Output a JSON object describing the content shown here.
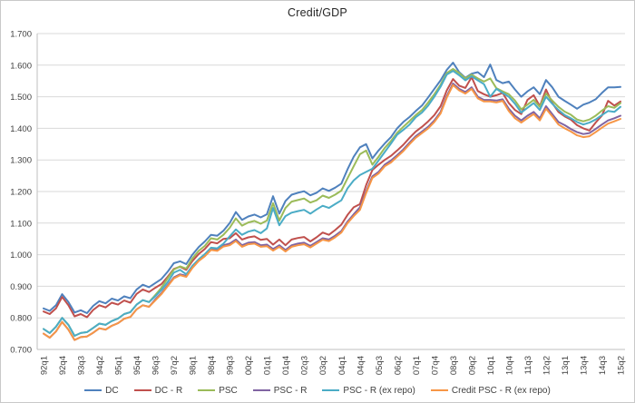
{
  "title": "Credit/GDP",
  "chart_data": {
    "type": "line",
    "title": "Credit/GDP",
    "xlabel": "",
    "ylabel": "",
    "grid": "horizontal",
    "legend_position": "bottom",
    "ylim": [
      0.7,
      1.7
    ],
    "y_ticks": [
      "0.700",
      "0.800",
      "0.900",
      "1.000",
      "1.100",
      "1.200",
      "1.300",
      "1.400",
      "1.500",
      "1.600",
      "1.700"
    ],
    "x_unit": "quarter",
    "x_label_step": 3,
    "x_tick_labels": [
      "92q1",
      "92q4",
      "93q3",
      "94q2",
      "95q1",
      "95q4",
      "96q3",
      "97q2",
      "98q1",
      "98q4",
      "99q3",
      "00q2",
      "01q1",
      "01q4",
      "02q3",
      "03q2",
      "04q1",
      "04q4",
      "05q3",
      "06q2",
      "07q1",
      "07q4",
      "08q3",
      "09q2",
      "10q1",
      "10q4",
      "11q3",
      "12q2",
      "13q1",
      "13q4",
      "14q3",
      "15q2"
    ],
    "series": [
      {
        "name": "DC",
        "color": "#4F81BD",
        "values": [
          0.83,
          0.822,
          0.84,
          0.875,
          0.85,
          0.817,
          0.824,
          0.815,
          0.838,
          0.853,
          0.846,
          0.861,
          0.855,
          0.868,
          0.862,
          0.89,
          0.905,
          0.897,
          0.91,
          0.923,
          0.946,
          0.973,
          0.979,
          0.97,
          1.0,
          1.024,
          1.042,
          1.063,
          1.06,
          1.076,
          1.1,
          1.135,
          1.11,
          1.121,
          1.127,
          1.118,
          1.128,
          1.185,
          1.13,
          1.17,
          1.19,
          1.196,
          1.201,
          1.188,
          1.196,
          1.21,
          1.202,
          1.212,
          1.225,
          1.27,
          1.31,
          1.34,
          1.35,
          1.305,
          1.33,
          1.352,
          1.372,
          1.4,
          1.42,
          1.436,
          1.455,
          1.472,
          1.498,
          1.525,
          1.552,
          1.585,
          1.608,
          1.578,
          1.56,
          1.573,
          1.578,
          1.562,
          1.602,
          1.553,
          1.543,
          1.548,
          1.523,
          1.5,
          1.517,
          1.53,
          1.508,
          1.553,
          1.53,
          1.5,
          1.487,
          1.475,
          1.462,
          1.475,
          1.482,
          1.492,
          1.512,
          1.53,
          1.53,
          1.531
        ]
      },
      {
        "name": "DC - R",
        "color": "#C0504D",
        "values": [
          0.82,
          0.812,
          0.83,
          0.866,
          0.84,
          0.805,
          0.812,
          0.802,
          0.825,
          0.84,
          0.833,
          0.848,
          0.842,
          0.855,
          0.848,
          0.876,
          0.89,
          0.882,
          0.895,
          0.907,
          0.93,
          0.955,
          0.962,
          0.952,
          0.98,
          1.002,
          1.018,
          1.04,
          1.036,
          1.05,
          1.052,
          1.068,
          1.048,
          1.055,
          1.058,
          1.047,
          1.05,
          1.032,
          1.048,
          1.03,
          1.048,
          1.053,
          1.056,
          1.042,
          1.055,
          1.07,
          1.063,
          1.078,
          1.095,
          1.126,
          1.15,
          1.16,
          1.22,
          1.268,
          1.285,
          1.3,
          1.313,
          1.33,
          1.348,
          1.37,
          1.39,
          1.405,
          1.422,
          1.442,
          1.47,
          1.52,
          1.556,
          1.535,
          1.528,
          1.562,
          1.518,
          1.508,
          1.5,
          1.505,
          1.512,
          1.48,
          1.458,
          1.445,
          1.49,
          1.505,
          1.47,
          1.523,
          1.48,
          1.452,
          1.438,
          1.428,
          1.41,
          1.4,
          1.393,
          1.418,
          1.44,
          1.487,
          1.472,
          1.485
        ]
      },
      {
        "name": "PSC",
        "color": "#9BBB59",
        "values": [
          0.765,
          0.752,
          0.772,
          0.8,
          0.778,
          0.743,
          0.752,
          0.755,
          0.768,
          0.782,
          0.778,
          0.79,
          0.798,
          0.812,
          0.818,
          0.842,
          0.856,
          0.85,
          0.872,
          0.895,
          0.925,
          0.953,
          0.963,
          0.956,
          0.988,
          1.012,
          1.028,
          1.052,
          1.048,
          1.063,
          1.085,
          1.115,
          1.092,
          1.102,
          1.107,
          1.098,
          1.108,
          1.163,
          1.108,
          1.148,
          1.168,
          1.173,
          1.178,
          1.165,
          1.172,
          1.187,
          1.18,
          1.19,
          1.203,
          1.242,
          1.28,
          1.318,
          1.33,
          1.285,
          1.31,
          1.338,
          1.36,
          1.386,
          1.405,
          1.423,
          1.442,
          1.458,
          1.482,
          1.508,
          1.538,
          1.575,
          1.588,
          1.575,
          1.558,
          1.57,
          1.558,
          1.548,
          1.558,
          1.527,
          1.517,
          1.508,
          1.488,
          1.46,
          1.475,
          1.49,
          1.468,
          1.51,
          1.488,
          1.468,
          1.453,
          1.443,
          1.428,
          1.422,
          1.428,
          1.44,
          1.456,
          1.47,
          1.465,
          1.48
        ]
      },
      {
        "name": "PSC - R",
        "color": "#8064A2",
        "values": [
          0.75,
          0.737,
          0.757,
          0.787,
          0.763,
          0.73,
          0.739,
          0.741,
          0.753,
          0.767,
          0.763,
          0.775,
          0.783,
          0.797,
          0.803,
          0.827,
          0.84,
          0.835,
          0.858,
          0.878,
          0.903,
          0.928,
          0.938,
          0.933,
          0.962,
          0.983,
          0.998,
          1.018,
          1.016,
          1.03,
          1.035,
          1.048,
          1.03,
          1.038,
          1.04,
          1.03,
          1.032,
          1.018,
          1.03,
          1.015,
          1.03,
          1.035,
          1.038,
          1.028,
          1.04,
          1.052,
          1.048,
          1.06,
          1.075,
          1.105,
          1.128,
          1.15,
          1.2,
          1.248,
          1.262,
          1.285,
          1.298,
          1.315,
          1.333,
          1.355,
          1.375,
          1.39,
          1.405,
          1.425,
          1.452,
          1.502,
          1.542,
          1.525,
          1.515,
          1.53,
          1.5,
          1.49,
          1.49,
          1.488,
          1.492,
          1.462,
          1.44,
          1.425,
          1.44,
          1.452,
          1.432,
          1.47,
          1.445,
          1.42,
          1.41,
          1.398,
          1.388,
          1.382,
          1.385,
          1.398,
          1.412,
          1.425,
          1.432,
          1.44
        ]
      },
      {
        "name": "PSC - R (ex repo)",
        "color": "#4BACC6",
        "values": [
          0.765,
          0.752,
          0.772,
          0.8,
          0.778,
          0.743,
          0.752,
          0.755,
          0.768,
          0.782,
          0.778,
          0.79,
          0.798,
          0.812,
          0.818,
          0.842,
          0.856,
          0.85,
          0.868,
          0.888,
          0.913,
          0.943,
          0.952,
          0.938,
          0.965,
          0.985,
          1.002,
          1.022,
          1.02,
          1.035,
          1.058,
          1.08,
          1.063,
          1.073,
          1.078,
          1.068,
          1.083,
          1.148,
          1.093,
          1.122,
          1.133,
          1.138,
          1.142,
          1.13,
          1.143,
          1.155,
          1.148,
          1.16,
          1.172,
          1.21,
          1.235,
          1.252,
          1.262,
          1.272,
          1.298,
          1.325,
          1.352,
          1.38,
          1.395,
          1.412,
          1.435,
          1.45,
          1.472,
          1.5,
          1.532,
          1.57,
          1.582,
          1.568,
          1.552,
          1.565,
          1.552,
          1.54,
          1.5,
          1.525,
          1.512,
          1.5,
          1.478,
          1.45,
          1.465,
          1.48,
          1.458,
          1.5,
          1.478,
          1.458,
          1.442,
          1.432,
          1.42,
          1.412,
          1.418,
          1.428,
          1.442,
          1.455,
          1.452,
          1.468
        ]
      },
      {
        "name": "Credit PSC - R (ex repo)",
        "color": "#F79646",
        "values": [
          0.75,
          0.737,
          0.757,
          0.787,
          0.763,
          0.73,
          0.739,
          0.741,
          0.753,
          0.767,
          0.763,
          0.775,
          0.783,
          0.797,
          0.803,
          0.827,
          0.84,
          0.835,
          0.855,
          0.875,
          0.9,
          0.925,
          0.935,
          0.93,
          0.958,
          0.98,
          0.995,
          1.015,
          1.012,
          1.026,
          1.03,
          1.043,
          1.025,
          1.033,
          1.035,
          1.025,
          1.027,
          1.013,
          1.025,
          1.01,
          1.025,
          1.03,
          1.033,
          1.023,
          1.035,
          1.047,
          1.043,
          1.055,
          1.07,
          1.1,
          1.122,
          1.142,
          1.195,
          1.243,
          1.257,
          1.28,
          1.292,
          1.31,
          1.328,
          1.35,
          1.37,
          1.385,
          1.4,
          1.42,
          1.447,
          1.497,
          1.537,
          1.52,
          1.51,
          1.525,
          1.495,
          1.485,
          1.485,
          1.482,
          1.487,
          1.455,
          1.432,
          1.418,
          1.432,
          1.445,
          1.425,
          1.462,
          1.438,
          1.412,
          1.4,
          1.39,
          1.378,
          1.372,
          1.375,
          1.388,
          1.402,
          1.415,
          1.422,
          1.43
        ]
      }
    ],
    "style": {
      "gridline_color": "#D9D9D9",
      "axis_color": "#BFBFBF",
      "tick_text_color": "#3F3F3F",
      "line_width": 2
    }
  }
}
